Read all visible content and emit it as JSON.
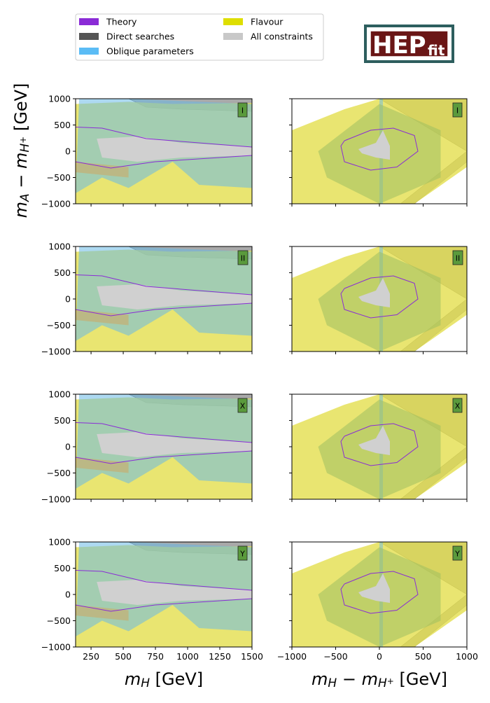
{
  "figure": {
    "legend": [
      {
        "name": "Theory",
        "color": "#8a2bd6"
      },
      {
        "name": "Direct searches",
        "color": "#555555"
      },
      {
        "name": "Oblique parameters",
        "color": "#5bbcf5"
      },
      {
        "name": "Flavour",
        "color": "#dede00"
      },
      {
        "name": "All constraints",
        "color": "#c8c8c8"
      }
    ],
    "logo": [
      "HEP",
      "fit"
    ],
    "ylabel": [
      "m",
      "A",
      " − ",
      "m",
      "H",
      "+",
      " [GeV]"
    ],
    "xlabels": [
      [
        "m",
        "H",
        " [GeV]"
      ],
      [
        "m",
        "H",
        " − ",
        "m",
        "H",
        "+",
        " [GeV]"
      ]
    ]
  },
  "chart_data": [
    {
      "type": "region",
      "badge": "I",
      "xlim": [
        130,
        1500
      ],
      "xticks": [
        250,
        500,
        750,
        1000,
        1250,
        1500
      ],
      "ylim": [
        -1000,
        1000
      ],
      "yticks": [
        {
          "value": -1000,
          "label": "−1000"
        },
        {
          "value": -500,
          "label": "−500"
        },
        0,
        500,
        1000
      ]
    },
    {
      "type": "region",
      "badge": "I",
      "xlim": [
        -1000,
        1000
      ],
      "xticks": [
        {
          "value": -1000,
          "label": "−1000"
        },
        {
          "value": -500,
          "label": "−500"
        },
        0,
        500,
        1000
      ],
      "ylim": [
        -1000,
        1000
      ],
      "yticks": [
        {
          "value": -1000,
          "label": "−1000"
        },
        {
          "value": -500,
          "label": "−500"
        },
        0,
        500,
        1000
      ]
    },
    {
      "type": "region",
      "badge": "II",
      "xlim": [
        130,
        1500
      ],
      "xticks": [
        250,
        500,
        750,
        1000,
        1250,
        1500
      ],
      "ylim": [
        -1000,
        1000
      ],
      "yticks": [
        {
          "value": -1000,
          "label": "−1000"
        },
        {
          "value": -500,
          "label": "−500"
        },
        0,
        500,
        1000
      ]
    },
    {
      "type": "region",
      "badge": "II",
      "xlim": [
        -1000,
        1000
      ],
      "xticks": [
        {
          "value": -1000,
          "label": "−1000"
        },
        {
          "value": -500,
          "label": "−500"
        },
        0,
        500,
        1000
      ],
      "ylim": [
        -1000,
        1000
      ],
      "yticks": [
        {
          "value": -1000,
          "label": "−1000"
        },
        {
          "value": -500,
          "label": "−500"
        },
        0,
        500,
        1000
      ]
    },
    {
      "type": "region",
      "badge": "X",
      "xlim": [
        130,
        1500
      ],
      "xticks": [
        250,
        500,
        750,
        1000,
        1250,
        1500
      ],
      "ylim": [
        -1000,
        1000
      ],
      "yticks": [
        {
          "value": -1000,
          "label": "−1000"
        },
        {
          "value": -500,
          "label": "−500"
        },
        0,
        500,
        1000
      ]
    },
    {
      "type": "region",
      "badge": "X",
      "xlim": [
        -1000,
        1000
      ],
      "xticks": [
        {
          "value": -1000,
          "label": "−1000"
        },
        {
          "value": -500,
          "label": "−500"
        },
        0,
        500,
        1000
      ],
      "ylim": [
        -1000,
        1000
      ],
      "yticks": [
        {
          "value": -1000,
          "label": "−1000"
        },
        {
          "value": -500,
          "label": "−500"
        },
        0,
        500,
        1000
      ]
    },
    {
      "type": "region",
      "badge": "Y",
      "xlim": [
        130,
        1500
      ],
      "xticks": [
        250,
        500,
        750,
        1000,
        1250,
        1500
      ],
      "ylim": [
        -1000,
        1000
      ],
      "yticks": [
        {
          "value": -1000,
          "label": "−1000"
        },
        {
          "value": -500,
          "label": "−500"
        },
        0,
        500,
        1000
      ]
    },
    {
      "type": "region",
      "badge": "Y",
      "xlim": [
        -1000,
        1000
      ],
      "xticks": [
        {
          "value": -1000,
          "label": "−1000"
        },
        {
          "value": -500,
          "label": "−500"
        },
        0,
        500,
        1000
      ],
      "ylim": [
        -1000,
        1000
      ],
      "yticks": [
        {
          "value": -1000,
          "label": "−1000"
        },
        {
          "value": -500,
          "label": "−500"
        },
        0,
        500,
        1000
      ]
    }
  ]
}
